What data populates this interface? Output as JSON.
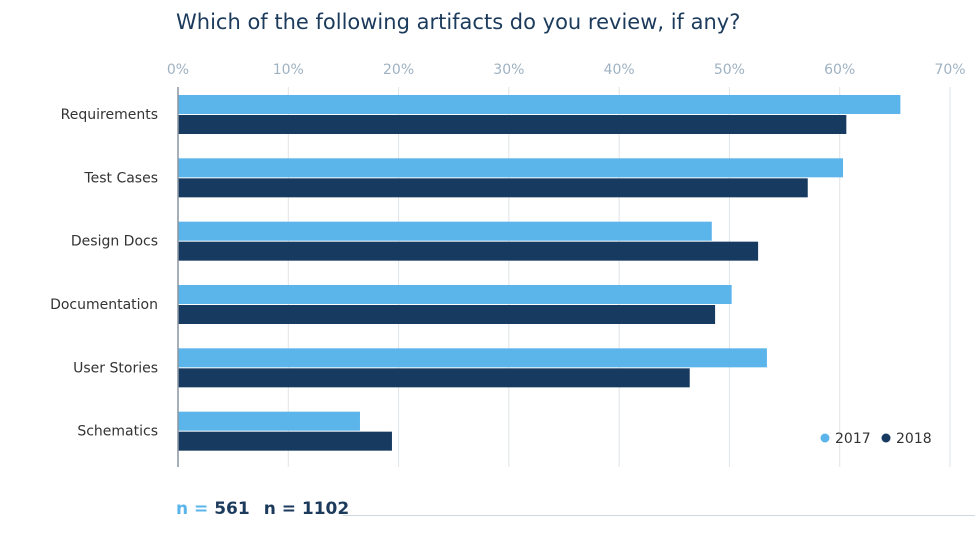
{
  "title": "Which of the following artifacts do you review, if any?",
  "footer": {
    "n1_prefix": "n = ",
    "n1_value": "561",
    "n2_text": "n = 1102"
  },
  "colors": {
    "series_2017": "#5bb4ea",
    "series_2018": "#173a60",
    "grid": "#dfe4e8",
    "axis": "#8a96a0",
    "tick_label": "#9fb2c2",
    "category_label": "#333333"
  },
  "chart_data": {
    "type": "bar",
    "orientation": "horizontal",
    "title": "Which of the following artifacts do you review, if any?",
    "categories": [
      "Requirements",
      "Test Cases",
      "Design Docs",
      "Documentation",
      "User Stories",
      "Schematics"
    ],
    "series": [
      {
        "name": "2017",
        "values": [
          65.5,
          60.3,
          48.4,
          50.2,
          53.4,
          16.5
        ]
      },
      {
        "name": "2018",
        "values": [
          60.6,
          57.1,
          52.6,
          48.7,
          46.4,
          19.4
        ]
      }
    ],
    "xlim": [
      0,
      70
    ],
    "xticks": [
      "0%",
      "10%",
      "20%",
      "30%",
      "40%",
      "50%",
      "60%",
      "70%"
    ],
    "xlabel": "",
    "ylabel": "",
    "grid": true,
    "legend_position": "bottom-right"
  }
}
